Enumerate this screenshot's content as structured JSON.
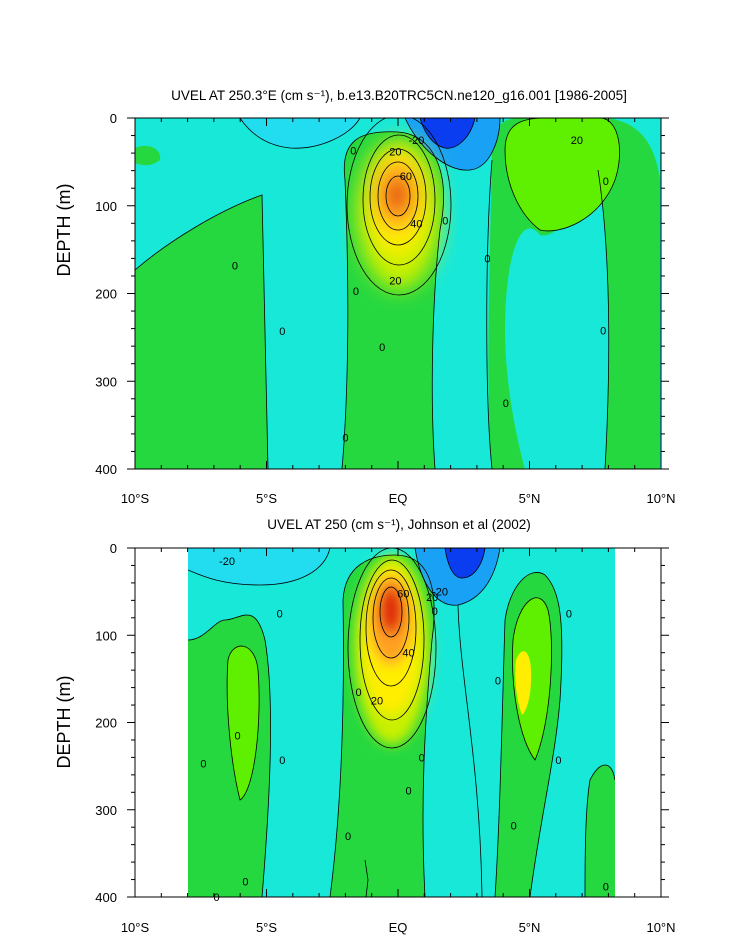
{
  "chart_data": [
    {
      "type": "heatmap",
      "title": "UVEL AT 250.3°E (cm s⁻¹), b.e13.B20TRC5CN.ne120_g16.001 [1986-2005]",
      "ylabel": "DEPTH (m)",
      "x_ticks": [
        "10°S",
        "5°S",
        "EQ",
        "5°N",
        "10°N"
      ],
      "y_ticks": [
        "0",
        "100",
        "200",
        "300",
        "400"
      ],
      "xlim": [
        -10,
        10
      ],
      "ylim": [
        400,
        0
      ],
      "contour_interval": 5,
      "features": [
        {
          "lat": 0.0,
          "depth": 90,
          "value": 75
        },
        {
          "lat": 1.0,
          "depth": 15,
          "value": -30
        },
        {
          "lat": 5.3,
          "depth": 40,
          "value": 25
        }
      ],
      "contour_labels": [
        {
          "text": "-20",
          "lat": 0.7,
          "depth": 25
        },
        {
          "text": "20",
          "lat": -0.1,
          "depth": 38
        },
        {
          "text": "60",
          "lat": 0.3,
          "depth": 66
        },
        {
          "text": "40",
          "lat": 0.7,
          "depth": 120
        },
        {
          "text": "20",
          "lat": -0.1,
          "depth": 185
        },
        {
          "text": "20",
          "lat": 6.8,
          "depth": 25
        },
        {
          "text": "0",
          "lat": -1.7,
          "depth": 37
        },
        {
          "text": "0",
          "lat": 7.9,
          "depth": 72
        },
        {
          "text": "0",
          "lat": 1.8,
          "depth": 117
        },
        {
          "text": "0",
          "lat": -6.2,
          "depth": 168
        },
        {
          "text": "0",
          "lat": 3.4,
          "depth": 160
        },
        {
          "text": "0",
          "lat": -1.6,
          "depth": 197
        },
        {
          "text": "0",
          "lat": -4.4,
          "depth": 243
        },
        {
          "text": "0",
          "lat": 7.8,
          "depth": 242
        },
        {
          "text": "0",
          "lat": -0.6,
          "depth": 261
        },
        {
          "text": "0",
          "lat": 4.1,
          "depth": 325
        },
        {
          "text": "0",
          "lat": -2.0,
          "depth": 364
        }
      ]
    },
    {
      "type": "heatmap",
      "title": "UVEL AT 250 (cm s⁻¹), Johnson et al (2002)",
      "ylabel": "DEPTH (m)",
      "x_ticks": [
        "10°S",
        "5°S",
        "EQ",
        "5°N",
        "10°N"
      ],
      "y_ticks": [
        "0",
        "100",
        "200",
        "300",
        "400"
      ],
      "xlim": [
        -10,
        10
      ],
      "ylim": [
        400,
        0
      ],
      "contour_interval": 5,
      "features": [
        {
          "lat": -0.2,
          "depth": 75,
          "value": 75
        },
        {
          "lat": 2.2,
          "depth": 25,
          "value": -25
        },
        {
          "lat": 5.2,
          "depth": 140,
          "value": 20
        }
      ],
      "contour_labels": [
        {
          "text": "-20",
          "lat": -6.5,
          "depth": 15
        },
        {
          "text": "-20",
          "lat": 1.6,
          "depth": 50
        },
        {
          "text": "60",
          "lat": 0.2,
          "depth": 52
        },
        {
          "text": "20",
          "lat": 1.3,
          "depth": 56
        },
        {
          "text": "40",
          "lat": 0.4,
          "depth": 120
        },
        {
          "text": "20",
          "lat": -0.8,
          "depth": 175
        },
        {
          "text": "0",
          "lat": 1.4,
          "depth": 72
        },
        {
          "text": "0",
          "lat": -4.5,
          "depth": 75
        },
        {
          "text": "0",
          "lat": 6.5,
          "depth": 75
        },
        {
          "text": "0",
          "lat": -1.5,
          "depth": 165
        },
        {
          "text": "0",
          "lat": 3.8,
          "depth": 152
        },
        {
          "text": "0",
          "lat": -6.1,
          "depth": 215
        },
        {
          "text": "0",
          "lat": -7.4,
          "depth": 247
        },
        {
          "text": "0",
          "lat": -4.4,
          "depth": 243
        },
        {
          "text": "0",
          "lat": 0.9,
          "depth": 240
        },
        {
          "text": "0",
          "lat": 6.1,
          "depth": 243
        },
        {
          "text": "0",
          "lat": 0.4,
          "depth": 278
        },
        {
          "text": "0",
          "lat": 4.4,
          "depth": 318
        },
        {
          "text": "0",
          "lat": -1.9,
          "depth": 330
        },
        {
          "text": "0",
          "lat": -5.8,
          "depth": 382
        },
        {
          "text": "0",
          "lat": 7.9,
          "depth": 388
        },
        {
          "text": "0",
          "lat": -6.9,
          "depth": 400
        }
      ]
    }
  ],
  "colors": {
    "strong_negative": "#0a3cf0",
    "negative": "#19a2f5",
    "weak_negative": "#22dcf0",
    "near_zero": "#18e8d8",
    "weak_positive": "#26d840",
    "positive": "#5ef000",
    "moderate": "#c8f000",
    "high": "#ffee00",
    "higher": "#ffa020",
    "peak": "#e02810"
  }
}
